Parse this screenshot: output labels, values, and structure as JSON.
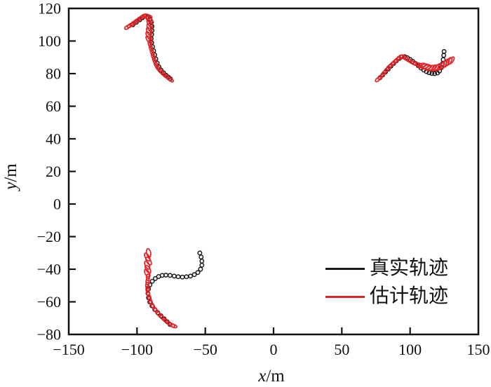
{
  "figure": {
    "background": "#ffffff",
    "axes": {
      "xlabel_var": "x",
      "xlabel_unit": "/m",
      "ylabel_var": "y",
      "ylabel_unit": "/m"
    },
    "legend": [
      {
        "label": "真实轨迹",
        "color": "#1a1a1a"
      },
      {
        "label": "估计轨迹",
        "color": "#e02428"
      }
    ]
  },
  "chart_data": {
    "type": "scatter",
    "title": "",
    "xlabel": "x/m",
    "ylabel": "y/m",
    "xlim": [
      -150,
      150
    ],
    "ylim": [
      -80,
      120
    ],
    "grid": false,
    "legend_position": "lower-right",
    "xticks": [
      -150,
      -100,
      -50,
      0,
      50,
      100,
      150
    ],
    "xtick_labels": [
      "−150",
      "−100",
      "−50",
      "0",
      "50",
      "100",
      "150"
    ],
    "yticks": [
      120,
      100,
      80,
      60,
      40,
      20,
      0,
      -20,
      -40,
      -60,
      -80
    ],
    "ytick_labels": [
      "120",
      "100",
      "80",
      "60",
      "40",
      "20",
      "0",
      "−20",
      "−40",
      "−60",
      "−80"
    ],
    "series": [
      {
        "name": "真实轨迹",
        "color": "#1a1a1a",
        "marker": "open-circle",
        "trajectories": [
          {
            "points": [
              [
                -103,
                110
              ],
              [
                -100.5,
                111.5
              ],
              [
                -98,
                113
              ],
              [
                -96,
                114.3
              ],
              [
                -94,
                115.2
              ],
              [
                -92,
                114.8
              ],
              [
                -90.5,
                113.5
              ],
              [
                -89.5,
                111.5
              ],
              [
                -89,
                109
              ],
              [
                -89,
                106.5
              ],
              [
                -89.3,
                104
              ],
              [
                -89.6,
                101.5
              ],
              [
                -89.3,
                99
              ],
              [
                -88.6,
                96.5
              ],
              [
                -87.8,
                94
              ],
              [
                -87,
                91.5
              ],
              [
                -86.2,
                89
              ],
              [
                -85.2,
                86.5
              ],
              [
                -84,
                84.2
              ],
              [
                -82.4,
                82.2
              ],
              [
                -80.6,
                80.5
              ],
              [
                -78.8,
                79
              ],
              [
                -77,
                77.8
              ],
              [
                -75.6,
                76.8
              ]
            ]
          },
          {
            "points": [
              [
                78,
                77.5
              ],
              [
                80,
                79.2
              ],
              [
                82,
                81
              ],
              [
                84,
                82.8
              ],
              [
                86,
                84.6
              ],
              [
                88,
                86.3
              ],
              [
                90,
                87.9
              ],
              [
                92,
                89.3
              ],
              [
                94,
                90.3
              ],
              [
                96,
                90.4
              ],
              [
                98,
                89.7
              ],
              [
                100,
                88.7
              ],
              [
                102,
                87.5
              ],
              [
                104,
                86.2
              ],
              [
                106,
                84.8
              ],
              [
                108,
                83.4
              ],
              [
                110,
                82.2
              ],
              [
                112,
                81.2
              ],
              [
                114,
                80.5
              ],
              [
                116,
                80.1
              ],
              [
                118,
                80
              ],
              [
                120,
                80.4
              ],
              [
                121.6,
                81.6
              ],
              [
                122.8,
                83.6
              ],
              [
                123.6,
                86
              ],
              [
                124.2,
                88.6
              ],
              [
                124.6,
                91.2
              ],
              [
                124.9,
                93.6
              ]
            ]
          },
          {
            "points": [
              [
                -54,
                -30
              ],
              [
                -53,
                -32.5
              ],
              [
                -52.5,
                -35
              ],
              [
                -52.5,
                -37.5
              ],
              [
                -53.5,
                -40
              ],
              [
                -55.5,
                -42
              ],
              [
                -58,
                -43.3
              ],
              [
                -60.8,
                -44.2
              ],
              [
                -63.8,
                -44.6
              ],
              [
                -66.8,
                -44.8
              ],
              [
                -69.8,
                -44.6
              ],
              [
                -72.8,
                -44.2
              ],
              [
                -75.8,
                -43.8
              ],
              [
                -78.8,
                -43.6
              ],
              [
                -81.6,
                -43.8
              ],
              [
                -84.2,
                -44.5
              ],
              [
                -86.6,
                -45.7
              ],
              [
                -88.8,
                -47.4
              ],
              [
                -90.5,
                -49.6
              ],
              [
                -91.6,
                -52.1
              ],
              [
                -92,
                -54.8
              ],
              [
                -91.6,
                -57.5
              ],
              [
                -90.6,
                -60.1
              ],
              [
                -89,
                -62.5
              ],
              [
                -87,
                -64.7
              ],
              [
                -84.8,
                -66.7
              ],
              [
                -82.5,
                -68.6
              ],
              [
                -80.2,
                -70.4
              ],
              [
                -77.9,
                -72.2
              ],
              [
                -75.8,
                -73.9
              ]
            ]
          }
        ]
      },
      {
        "name": "估计轨迹",
        "color": "#e02428",
        "marker": "open-ellipse",
        "trajectories": [
          {
            "points": [
              [
                -107,
                108.5
              ],
              [
                -105,
                109.6
              ],
              [
                -102.8,
                110.9
              ],
              [
                -100.6,
                112.2
              ],
              [
                -98.4,
                113.5
              ],
              [
                -96.2,
                114.7
              ],
              [
                -94,
                115.6
              ],
              [
                -92.2,
                115
              ],
              [
                -91,
                113.2
              ],
              [
                -90.6,
                110.8
              ],
              [
                -90.8,
                108.3
              ],
              [
                -91.2,
                105.8
              ],
              [
                -91.4,
                103.3
              ],
              [
                -91.2,
                100.8
              ],
              [
                -90.6,
                98.3
              ],
              [
                -89.8,
                95.8
              ],
              [
                -89,
                93.3
              ],
              [
                -88.2,
                90.8
              ],
              [
                -87.3,
                88.3
              ],
              [
                -86.2,
                85.8
              ],
              [
                -84.8,
                83.6
              ],
              [
                -83,
                81.7
              ],
              [
                -81,
                80
              ],
              [
                -79,
                78.6
              ],
              [
                -77,
                77.3
              ],
              [
                -75.4,
                76.3
              ]
            ],
            "emphasis": [
              7,
              8,
              9,
              10,
              11,
              12,
              13
            ]
          },
          {
            "points": [
              [
                76.5,
                76.5
              ],
              [
                78.5,
                78
              ],
              [
                80.5,
                80
              ],
              [
                82.5,
                82
              ],
              [
                84.5,
                84
              ],
              [
                86.5,
                85.5
              ],
              [
                88.5,
                87
              ],
              [
                90.5,
                88.5
              ],
              [
                92.5,
                90
              ],
              [
                94.5,
                90.5
              ],
              [
                96.5,
                89.5
              ],
              [
                98.5,
                88.5
              ],
              [
                100.5,
                87.5
              ],
              [
                102.5,
                86.5
              ],
              [
                104.5,
                86
              ],
              [
                106.5,
                85.5
              ],
              [
                108.5,
                85
              ],
              [
                110.5,
                84.5
              ],
              [
                112.5,
                84
              ],
              [
                114.5,
                83.5
              ],
              [
                116.5,
                83.5
              ],
              [
                118.5,
                83.5
              ],
              [
                120.5,
                84
              ],
              [
                122.5,
                84.5
              ],
              [
                124.5,
                85.5
              ],
              [
                126.5,
                86.5
              ],
              [
                128.5,
                87.5
              ],
              [
                130,
                88
              ]
            ],
            "emphasis": [
              16,
              17,
              18,
              19,
              20,
              21,
              22,
              23,
              24,
              25,
              26,
              27
            ]
          },
          {
            "points": [
              [
                -91.5,
                -30
              ],
              [
                -92.5,
                -32.5
              ],
              [
                -91.5,
                -35
              ],
              [
                -92.5,
                -37.5
              ],
              [
                -92,
                -40
              ],
              [
                -92.5,
                -42.5
              ],
              [
                -92,
                -45
              ],
              [
                -92.3,
                -47.5
              ],
              [
                -92.5,
                -50
              ],
              [
                -92.3,
                -52.5
              ],
              [
                -91.8,
                -55
              ],
              [
                -91,
                -57.5
              ],
              [
                -90,
                -60
              ],
              [
                -88.5,
                -62.5
              ],
              [
                -86.5,
                -65
              ],
              [
                -84.3,
                -67.3
              ],
              [
                -81.8,
                -69.4
              ],
              [
                -79.3,
                -71.3
              ],
              [
                -76.8,
                -73
              ],
              [
                -74.5,
                -74.3
              ],
              [
                -73,
                -74.8
              ]
            ],
            "emphasis": [
              0,
              1,
              2,
              3,
              4,
              5
            ]
          }
        ]
      }
    ]
  }
}
